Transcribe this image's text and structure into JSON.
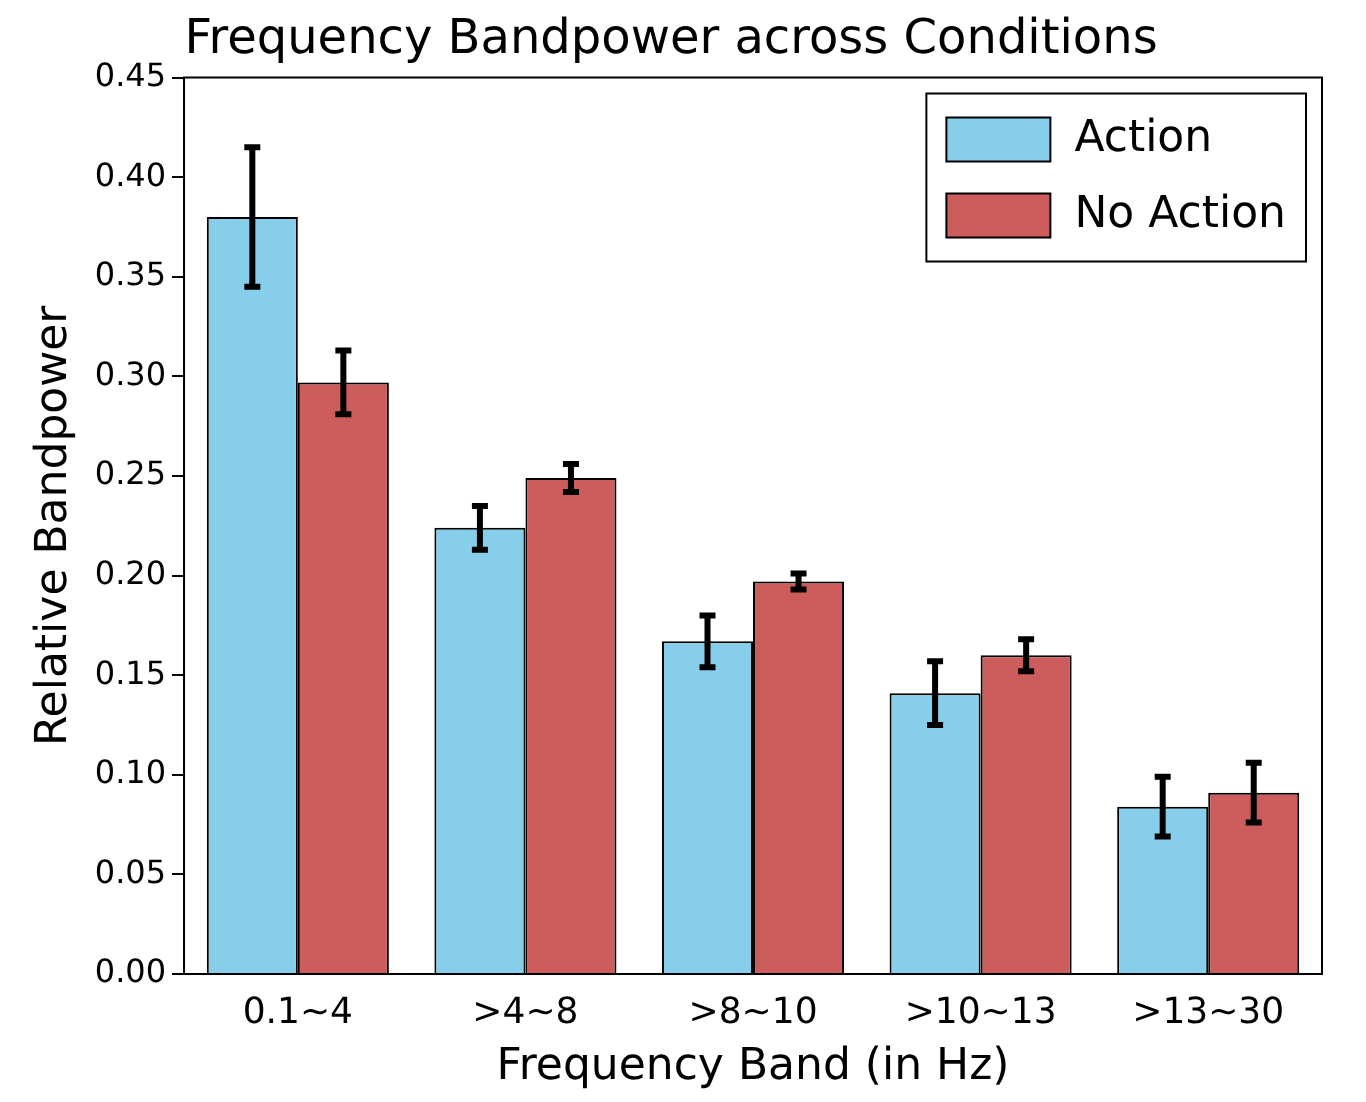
{
  "chart_data": {
    "type": "bar",
    "title": "Frequency Bandpower across Conditions",
    "xlabel": "Frequency Band (in Hz)",
    "ylabel": "Relative Bandpower",
    "categories": [
      "0.1~4",
      ">4~8",
      ">8~10",
      ">10~13",
      ">13~30"
    ],
    "series": [
      {
        "name": "Action",
        "color": "#87ceeb",
        "values": [
          0.38,
          0.224,
          0.167,
          0.141,
          0.084
        ],
        "errors": [
          0.035,
          0.011,
          0.013,
          0.016,
          0.015
        ]
      },
      {
        "name": "No Action",
        "color": "#cd5c5c",
        "values": [
          0.297,
          0.249,
          0.197,
          0.16,
          0.091
        ],
        "errors": [
          0.016,
          0.007,
          0.004,
          0.008,
          0.015
        ]
      }
    ],
    "ylim": [
      0,
      0.45
    ],
    "yticks": [
      {
        "value": 0,
        "label": "0.00"
      },
      {
        "value": 0.05,
        "label": "0.05"
      },
      {
        "value": 0.1,
        "label": "0.10"
      },
      {
        "value": 0.15,
        "label": "0.15"
      },
      {
        "value": 0.2,
        "label": "0.20"
      },
      {
        "value": 0.25,
        "label": "0.25"
      },
      {
        "value": 0.3,
        "label": "0.30"
      },
      {
        "value": 0.35,
        "label": "0.35"
      },
      {
        "value": 0.4,
        "label": "0.40"
      },
      {
        "value": 0.45,
        "label": "0.45"
      }
    ],
    "grid": false,
    "legend": "top right"
  }
}
